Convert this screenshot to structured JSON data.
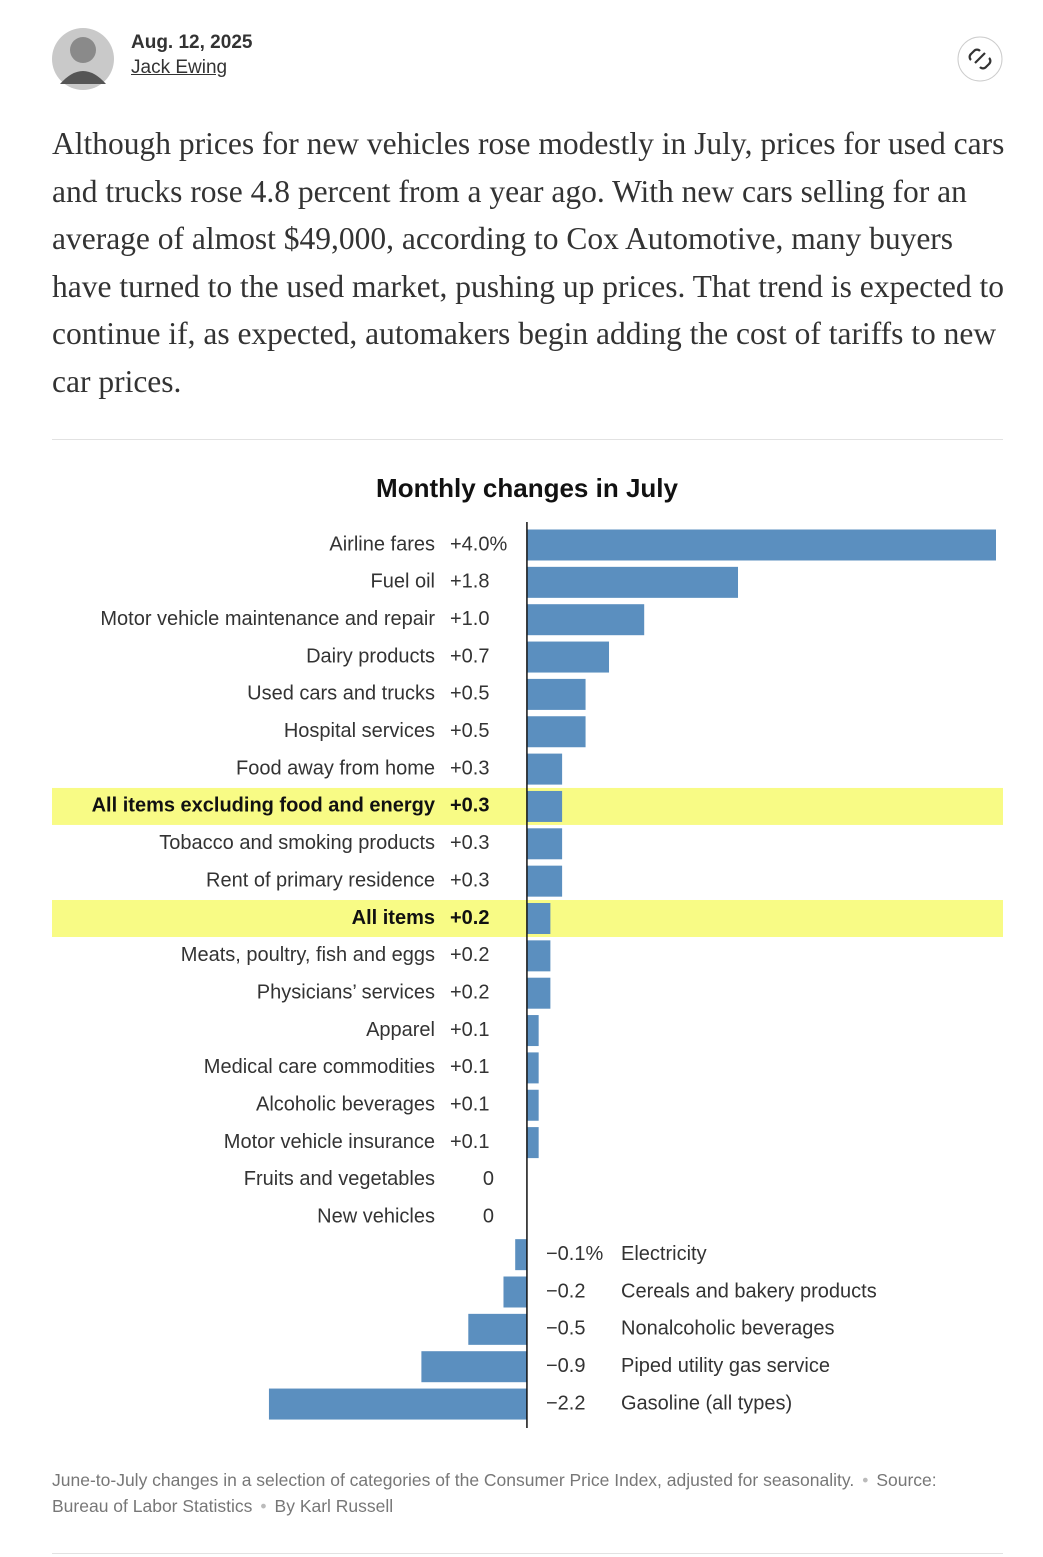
{
  "header": {
    "date": "Aug. 12, 2025",
    "author": "Jack Ewing"
  },
  "body": "Although prices for new vehicles rose modestly in July, prices for used cars and trucks rose 4.8 percent from a year ago. With new cars selling for an average of almost $49,000, according to Cox Automotive, many buyers have turned to the used market, pushing up prices. That trend is expected to continue if, as expected, automakers begin adding the cost of tariffs to new car prices.",
  "chart_data": {
    "type": "bar",
    "orientation": "horizontal",
    "title": "Monthly changes in July",
    "categories": [
      "Airline fares",
      "Fuel oil",
      "Motor vehicle maintenance and repair",
      "Dairy products",
      "Used cars and trucks",
      "Hospital services",
      "Food away from home",
      "All items excluding food and energy",
      "Tobacco and smoking products",
      "Rent of primary residence",
      "All items",
      "Meats, poultry, fish and eggs",
      "Physicians’ services",
      "Apparel",
      "Medical care commodities",
      "Alcoholic beverages",
      "Motor vehicle insurance",
      "Fruits and vegetables",
      "New vehicles",
      "Electricity",
      "Cereals and bakery products",
      "Nonalcoholic beverages",
      "Piped utility gas service",
      "Gasoline (all types)"
    ],
    "values": [
      4.0,
      1.8,
      1.0,
      0.7,
      0.5,
      0.5,
      0.3,
      0.3,
      0.3,
      0.3,
      0.2,
      0.2,
      0.2,
      0.1,
      0.1,
      0.1,
      0.1,
      0,
      0,
      -0.1,
      -0.2,
      -0.5,
      -0.9,
      -2.2
    ],
    "value_labels": [
      "+4.0%",
      "+1.8",
      "+1.0",
      "+0.7",
      "+0.5",
      "+0.5",
      "+0.3",
      "+0.3",
      "+0.3",
      "+0.3",
      "+0.2",
      "+0.2",
      "+0.2",
      "+0.1",
      "+0.1",
      "+0.1",
      "+0.1",
      "0",
      "0",
      "−0.1%",
      "−0.2",
      "−0.5",
      "−0.9",
      "−2.2"
    ],
    "highlighted": [
      false,
      false,
      false,
      false,
      false,
      false,
      false,
      true,
      false,
      false,
      true,
      false,
      false,
      false,
      false,
      false,
      false,
      false,
      false,
      false,
      false,
      false,
      false,
      false
    ],
    "color": "#5b8fbf",
    "highlight_color": "#f8fb85",
    "xlim": [
      -4.05,
      4.0
    ]
  },
  "footer": {
    "note": "June-to-July changes in a selection of categories of the Consumer Price Index, adjusted for seasonality.",
    "source": "Source: Bureau of Labor Statistics",
    "credit": "By Karl Russell"
  }
}
